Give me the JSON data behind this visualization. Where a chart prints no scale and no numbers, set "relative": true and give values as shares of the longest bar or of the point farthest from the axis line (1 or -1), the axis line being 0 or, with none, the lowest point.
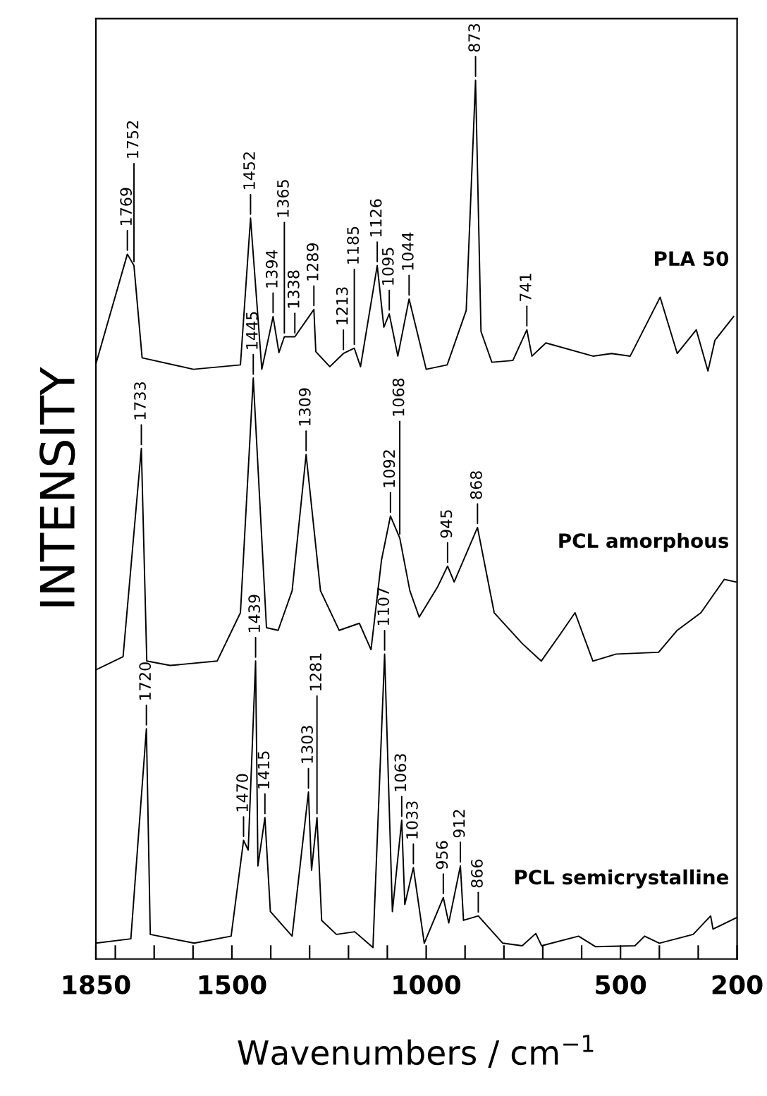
{
  "chart_data": {
    "type": "line",
    "relative": true,
    "xlabel": "Wavenumbers / cm$^{−1}$",
    "ylabel": "INTENSITY",
    "xlim": [
      1850,
      200
    ],
    "xticks": [
      1850,
      {
        "value": 1800,
        "label": null
      },
      {
        "value": 1700,
        "label": null
      },
      {
        "value": 1600,
        "label": null
      },
      1500,
      {
        "value": 1400,
        "label": null
      },
      {
        "value": 1300,
        "label": null
      },
      {
        "value": 1200,
        "label": null
      },
      {
        "value": 1100,
        "label": null
      },
      1000,
      {
        "value": 900,
        "label": null
      },
      {
        "value": 800,
        "label": null
      },
      {
        "value": 700,
        "label": null
      },
      {
        "value": 600,
        "label": null
      },
      500,
      {
        "value": 400,
        "label": null
      },
      {
        "value": 300,
        "label": null
      },
      200
    ],
    "tick_labels": "x",
    "grid": false,
    "legend": false,
    "marker": "none",
    "line_style": "solid",
    "series": [
      {
        "name": "PLA 50",
        "color": "#000000",
        "x": [
          1850,
          1769,
          1752,
          1731,
          1599,
          1478,
          1452,
          1423,
          1394,
          1379,
          1365,
          1338,
          1289,
          1284,
          1248,
          1213,
          1185,
          1169,
          1126,
          1109,
          1095,
          1073,
          1044,
          1000,
          946,
          897,
          873,
          859,
          831,
          777,
          741,
          728,
          692,
          571,
          523,
          475,
          398,
          354,
          305,
          275,
          257,
          209
        ],
        "values": [
          0.677,
          0.802,
          0.789,
          0.684,
          0.671,
          0.676,
          0.843,
          0.671,
          0.731,
          0.69,
          0.708,
          0.708,
          0.739,
          0.691,
          0.674,
          0.689,
          0.695,
          0.674,
          0.789,
          0.719,
          0.734,
          0.686,
          0.751,
          0.671,
          0.676,
          0.738,
          1.0,
          0.714,
          0.679,
          0.681,
          0.716,
          0.686,
          0.701,
          0.686,
          0.689,
          0.686,
          0.753,
          0.689,
          0.716,
          0.669,
          0.704,
          0.731
        ]
      },
      {
        "name": "PCL amorphous",
        "color": "#000000",
        "x": [
          1850,
          1780,
          1733,
          1719,
          1659,
          1538,
          1478,
          1445,
          1411,
          1381,
          1345,
          1309,
          1272,
          1224,
          1172,
          1142,
          1115,
          1092,
          1068,
          1042,
          1018,
          970,
          945,
          928,
          868,
          825,
          753,
          704,
          656,
          617,
          571,
          511,
          402,
          354,
          293,
          233,
          203
        ],
        "values": [
          0.329,
          0.344,
          0.581,
          0.339,
          0.334,
          0.339,
          0.394,
          0.661,
          0.377,
          0.374,
          0.419,
          0.574,
          0.419,
          0.374,
          0.382,
          0.352,
          0.454,
          0.504,
          0.479,
          0.419,
          0.389,
          0.424,
          0.447,
          0.429,
          0.491,
          0.394,
          0.359,
          0.339,
          0.369,
          0.394,
          0.339,
          0.347,
          0.349,
          0.374,
          0.394,
          0.432,
          0.429
        ]
      },
      {
        "name": "PCL semicrystalline",
        "color": "#000000",
        "x": [
          1850,
          1760,
          1720,
          1710,
          1597,
          1502,
          1470,
          1458,
          1439,
          1433,
          1415,
          1401,
          1345,
          1303,
          1295,
          1281,
          1269,
          1231,
          1184,
          1137,
          1107,
          1087,
          1063,
          1055,
          1033,
          1005,
          956,
          942,
          912,
          904,
          866,
          803,
          753,
          718,
          703,
          608,
          564,
          463,
          438,
          400,
          313,
          268,
          262,
          202
        ],
        "values": [
          0.018,
          0.023,
          0.262,
          0.028,
          0.018,
          0.026,
          0.135,
          0.124,
          0.339,
          0.106,
          0.161,
          0.054,
          0.026,
          0.19,
          0.101,
          0.161,
          0.044,
          0.028,
          0.031,
          0.013,
          0.347,
          0.054,
          0.158,
          0.062,
          0.104,
          0.018,
          0.07,
          0.041,
          0.106,
          0.044,
          0.049,
          0.018,
          0.015,
          0.029,
          0.015,
          0.026,
          0.014,
          0.015,
          0.026,
          0.018,
          0.028,
          0.049,
          0.034,
          0.047
        ]
      }
    ],
    "annotations": [
      {
        "text": "1769",
        "x": 1769,
        "y": 0.802
      },
      {
        "text": "1752",
        "x": 1752,
        "y": 0.789
      },
      {
        "text": "1452",
        "x": 1452,
        "y": 0.843
      },
      {
        "text": "1394",
        "x": 1394,
        "y": 0.731
      },
      {
        "text": "1365",
        "x": 1365,
        "y": 0.708
      },
      {
        "text": "1338",
        "x": 1338,
        "y": 0.708
      },
      {
        "text": "1289",
        "x": 1289,
        "y": 0.739
      },
      {
        "text": "1213",
        "x": 1213,
        "y": 0.689
      },
      {
        "text": "1185",
        "x": 1185,
        "y": 0.695
      },
      {
        "text": "1126",
        "x": 1126,
        "y": 0.789
      },
      {
        "text": "1095",
        "x": 1095,
        "y": 0.734
      },
      {
        "text": "1044",
        "x": 1044,
        "y": 0.751
      },
      {
        "text": "873",
        "x": 873,
        "y": 1.0
      },
      {
        "text": "741",
        "x": 741,
        "y": 0.716
      },
      {
        "text": "1733",
        "x": 1733,
        "y": 0.581
      },
      {
        "text": "1445",
        "x": 1445,
        "y": 0.661
      },
      {
        "text": "1309",
        "x": 1309,
        "y": 0.574
      },
      {
        "text": "1092",
        "x": 1092,
        "y": 0.504
      },
      {
        "text": "1068",
        "x": 1068,
        "y": 0.479
      },
      {
        "text": "945",
        "x": 945,
        "y": 0.447
      },
      {
        "text": "868",
        "x": 868,
        "y": 0.491
      },
      {
        "text": "1720",
        "x": 1720,
        "y": 0.262
      },
      {
        "text": "1470",
        "x": 1470,
        "y": 0.135
      },
      {
        "text": "1439",
        "x": 1439,
        "y": 0.339
      },
      {
        "text": "1415",
        "x": 1415,
        "y": 0.161
      },
      {
        "text": "1303",
        "x": 1303,
        "y": 0.19
      },
      {
        "text": "1281",
        "x": 1281,
        "y": 0.161
      },
      {
        "text": "1107",
        "x": 1107,
        "y": 0.347
      },
      {
        "text": "1063",
        "x": 1063,
        "y": 0.158
      },
      {
        "text": "1033",
        "x": 1033,
        "y": 0.104
      },
      {
        "text": "956",
        "x": 956,
        "y": 0.07
      },
      {
        "text": "912",
        "x": 912,
        "y": 0.106
      },
      {
        "text": "866",
        "x": 866,
        "y": 0.049
      }
    ]
  }
}
